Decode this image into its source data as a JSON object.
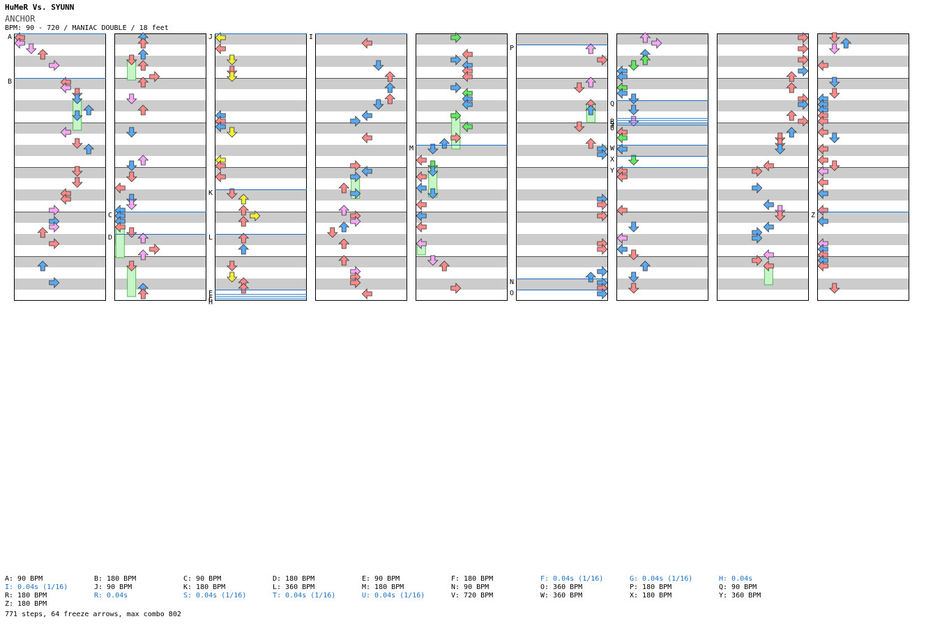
{
  "header": {
    "title": "HuMeR Vs. SYUNN",
    "song": "ANCHOR",
    "meta": "BPM: 90 - 720 / MANIAC DOUBLE / 18 feet"
  },
  "colors": {
    "stripe": "#cccccc",
    "red": "#ff8a8a",
    "blue": "#5aa8f0",
    "pink": "#f6a8f6",
    "yellow": "#f0f03c",
    "green": "#64e864",
    "freeze": "#c8f5c8",
    "marker_line": "#1a6fc2"
  },
  "chart": {
    "columns": 9,
    "rows_per_column": 24,
    "arrow_seed": 20240917,
    "markers": [
      {
        "label": "A",
        "column": 0,
        "row": 0
      },
      {
        "label": "B",
        "column": 0,
        "row": 4
      },
      {
        "label": "C",
        "column": 1,
        "row": 16
      },
      {
        "label": "D",
        "column": 1,
        "row": 18
      },
      {
        "label": "E",
        "column": 1,
        "row": 47
      },
      {
        "label": "F",
        "column": 1,
        "row": 47.4
      },
      {
        "label": "G",
        "column": 1,
        "row": 47.6
      },
      {
        "label": "H",
        "column": 1,
        "row": 47.8
      },
      {
        "label": "I",
        "column": 1,
        "row": 48
      },
      {
        "label": "J",
        "column": 2,
        "row": 0
      },
      {
        "label": "K",
        "column": 2,
        "row": 14
      },
      {
        "label": "L",
        "column": 2,
        "row": 18
      },
      {
        "label": "M",
        "column": 3,
        "row": 34
      },
      {
        "label": "N",
        "column": 4,
        "row": 46
      },
      {
        "label": "O",
        "column": 4,
        "row": 47
      },
      {
        "label": "P",
        "column": 5,
        "row": 1
      },
      {
        "label": "Q",
        "column": 5,
        "row": 30
      },
      {
        "label": "R",
        "column": 5,
        "row": 31.6
      },
      {
        "label": "S",
        "column": 5,
        "row": 31.8
      },
      {
        "label": "T",
        "column": 5,
        "row": 32
      },
      {
        "label": "U",
        "column": 5,
        "row": 32.2
      },
      {
        "label": "W",
        "column": 5,
        "row": 34
      },
      {
        "label": "X",
        "column": 5,
        "row": 35
      },
      {
        "label": "Y",
        "column": 5,
        "row": 36
      },
      {
        "label": "Z",
        "column": 8,
        "row": 16
      }
    ]
  },
  "legend": [
    {
      "text": "A: 90 BPM",
      "col": 0,
      "row": 0,
      "blue": false
    },
    {
      "text": "B: 180 BPM",
      "col": 1,
      "row": 0,
      "blue": false
    },
    {
      "text": "C: 90 BPM",
      "col": 2,
      "row": 0,
      "blue": false
    },
    {
      "text": "D: 180 BPM",
      "col": 3,
      "row": 0,
      "blue": false
    },
    {
      "text": "E: 90 BPM",
      "col": 4,
      "row": 0,
      "blue": false
    },
    {
      "text": "F: 180 BPM",
      "col": 5,
      "row": 0,
      "blue": false
    },
    {
      "text": "F: 0.04s (1/16)",
      "col": 6,
      "row": 0,
      "blue": true
    },
    {
      "text": "G: 0.04s (1/16)",
      "col": 7,
      "row": 0,
      "blue": true
    },
    {
      "text": "H: 0.04s",
      "col": 8,
      "row": 0,
      "blue": true
    },
    {
      "text": "I: 0.04s (1/16)",
      "col": 0,
      "row": 1,
      "blue": true
    },
    {
      "text": "J: 90 BPM",
      "col": 1,
      "row": 1,
      "blue": false
    },
    {
      "text": "K: 180 BPM",
      "col": 2,
      "row": 1,
      "blue": false
    },
    {
      "text": "L: 360 BPM",
      "col": 3,
      "row": 1,
      "blue": false
    },
    {
      "text": "M: 180 BPM",
      "col": 4,
      "row": 1,
      "blue": false
    },
    {
      "text": "N: 90 BPM",
      "col": 5,
      "row": 1,
      "blue": false
    },
    {
      "text": "O: 360 BPM",
      "col": 6,
      "row": 1,
      "blue": false
    },
    {
      "text": "P: 180 BPM",
      "col": 7,
      "row": 1,
      "blue": false
    },
    {
      "text": "Q: 90 BPM",
      "col": 8,
      "row": 1,
      "blue": false
    },
    {
      "text": "R: 180 BPM",
      "col": 0,
      "row": 2,
      "blue": false
    },
    {
      "text": "R: 0.04s",
      "col": 1,
      "row": 2,
      "blue": true
    },
    {
      "text": "S: 0.04s (1/16)",
      "col": 2,
      "row": 2,
      "blue": true
    },
    {
      "text": "T: 0.04s (1/16)",
      "col": 3,
      "row": 2,
      "blue": true
    },
    {
      "text": "U: 0.04s (1/16)",
      "col": 4,
      "row": 2,
      "blue": true
    },
    {
      "text": "V: 720 BPM",
      "col": 5,
      "row": 2,
      "blue": false
    },
    {
      "text": "W: 360 BPM",
      "col": 6,
      "row": 2,
      "blue": false
    },
    {
      "text": "X: 180 BPM",
      "col": 7,
      "row": 2,
      "blue": false
    },
    {
      "text": "Y: 360 BPM",
      "col": 8,
      "row": 2,
      "blue": false
    },
    {
      "text": "Z: 180 BPM",
      "col": 0,
      "row": 3,
      "blue": false
    }
  ],
  "summary": "771 steps, 64 freeze arrows, max combo 802"
}
